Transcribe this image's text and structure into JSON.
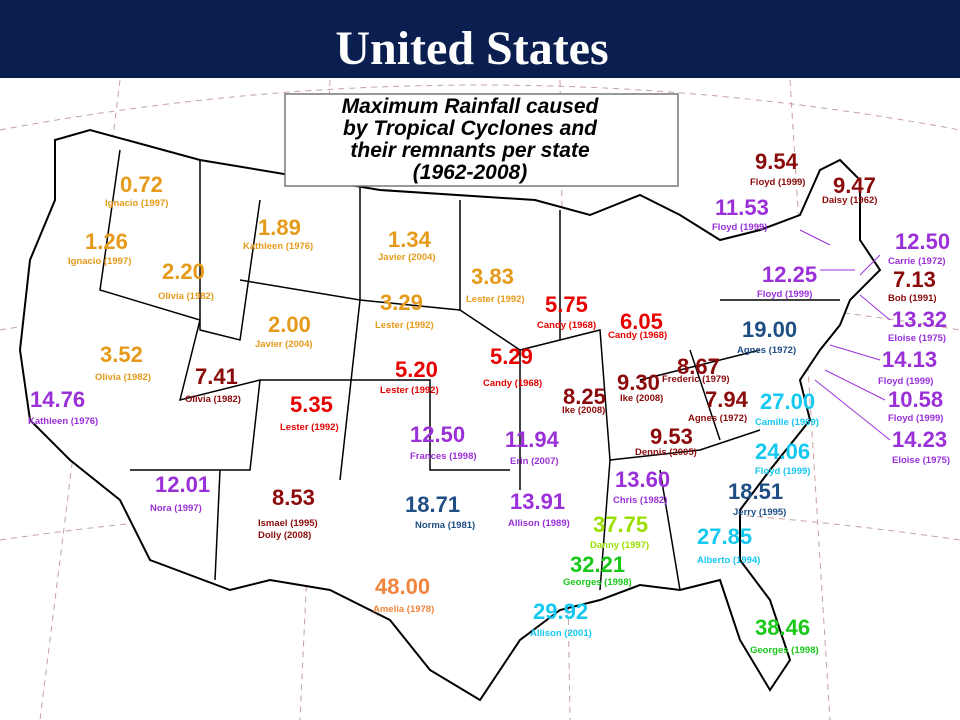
{
  "header": {
    "title": "United States"
  },
  "title_box": {
    "lines": [
      "Maximum Rainfall caused",
      "by Tropical Cyclones and",
      "their remnants per state",
      "(1962-2008)"
    ]
  },
  "labels": [
    {
      "value": "0.72",
      "storms": [
        "Ignacio (1997)"
      ],
      "color": "#e69a1a"
    },
    {
      "value": "1.26",
      "storms": [
        "Ignacio (1997)"
      ],
      "color": "#e69a1a"
    },
    {
      "value": "2.20",
      "storms": [
        "Olivia (1982)"
      ],
      "color": "#e69a1a"
    },
    {
      "value": "1.89",
      "storms": [
        "Kathleen (1976)"
      ],
      "color": "#e69a1a"
    },
    {
      "value": "1.34",
      "storms": [
        "Javier (2004)"
      ],
      "color": "#e69a1a"
    },
    {
      "value": "3.83",
      "storms": [
        "Lester (1992)"
      ],
      "color": "#e69a1a"
    },
    {
      "value": "3.29",
      "storms": [
        "Lester (1992)"
      ],
      "color": "#e69a1a"
    },
    {
      "value": "2.00",
      "storms": [
        "Javier (2004)"
      ],
      "color": "#e69a1a"
    },
    {
      "value": "3.52",
      "storms": [
        "Olivia (1982)"
      ],
      "color": "#e69a1a"
    },
    {
      "value": "7.41",
      "storms": [
        "Olivia (1982)"
      ],
      "color": "#8b0a0a"
    },
    {
      "value": "14.76",
      "storms": [
        "Kathleen (1976)"
      ],
      "color": "#9b30d9"
    },
    {
      "value": "5.35",
      "storms": [
        "Lester (1992)"
      ],
      "color": "#e60000"
    },
    {
      "value": "5.20",
      "storms": [
        "Lester (1992)"
      ],
      "color": "#e60000"
    },
    {
      "value": "5.29",
      "storms": [
        "Candy (1968)"
      ],
      "color": "#e60000"
    },
    {
      "value": "5.75",
      "storms": [
        "Candy (1968)"
      ],
      "color": "#e60000"
    },
    {
      "value": "6.05",
      "storms": [
        "Candy (1968)"
      ],
      "color": "#e60000"
    },
    {
      "value": "8.25",
      "storms": [
        "Ike (2008)"
      ],
      "color": "#8b0a0a"
    },
    {
      "value": "9.30",
      "storms": [
        "Ike (2008)"
      ],
      "color": "#8b0a0a"
    },
    {
      "value": "8.67",
      "storms": [
        "Frederic (1979)"
      ],
      "color": "#8b0a0a"
    },
    {
      "value": "7.94",
      "storms": [
        "Agnes (1972)"
      ],
      "color": "#8b0a0a"
    },
    {
      "value": "9.53",
      "storms": [
        "Dennis (2005)"
      ],
      "color": "#8b0a0a"
    },
    {
      "value": "12.50",
      "storms": [
        "Frances (1998)"
      ],
      "color": "#9b30d9"
    },
    {
      "value": "11.94",
      "storms": [
        "Erin (2007)"
      ],
      "color": "#9b30d9"
    },
    {
      "value": "12.01",
      "storms": [
        "Nora (1997)"
      ],
      "color": "#9b30d9"
    },
    {
      "value": "8.53",
      "storms": [
        "Ismael (1995)",
        "Dolly (2008)"
      ],
      "color": "#8b0a0a"
    },
    {
      "value": "18.71",
      "storms": [
        "Norma (1981)"
      ],
      "color": "#1f4e85"
    },
    {
      "value": "13.91",
      "storms": [
        "Allison (1989)"
      ],
      "color": "#9b30d9"
    },
    {
      "value": "13.60",
      "storms": [
        "Chris (1982)"
      ],
      "color": "#9b30d9"
    },
    {
      "value": "37.75",
      "storms": [
        "Danny (1997)"
      ],
      "color": "#99e000"
    },
    {
      "value": "32.21",
      "storms": [
        "Georges (1998)"
      ],
      "color": "#19c819"
    },
    {
      "value": "29.92",
      "storms": [
        "Allison (2001)"
      ],
      "color": "#14c8f0"
    },
    {
      "value": "48.00",
      "storms": [
        "Amelia (1978)"
      ],
      "color": "#f0843c"
    },
    {
      "value": "27.85",
      "storms": [
        "Alberto (1994)"
      ],
      "color": "#14c8f0"
    },
    {
      "value": "38.46",
      "storms": [
        "Georges (1998)"
      ],
      "color": "#19c819"
    },
    {
      "value": "18.51",
      "storms": [
        "Jerry (1995)"
      ],
      "color": "#1f4e85"
    },
    {
      "value": "24.06",
      "storms": [
        "Floyd (1999)"
      ],
      "color": "#14c8f0"
    },
    {
      "value": "27.00",
      "storms": [
        "Camille (1969)"
      ],
      "color": "#14c8f0"
    },
    {
      "value": "19.00",
      "storms": [
        "Agnes (1972)"
      ],
      "color": "#1f4e85"
    },
    {
      "value": "12.25",
      "storms": [
        "Floyd (1999)"
      ],
      "color": "#9b30d9"
    },
    {
      "value": "11.53",
      "storms": [
        "Floyd (1999)"
      ],
      "color": "#9b30d9"
    },
    {
      "value": "9.54",
      "storms": [
        "Floyd (1999)"
      ],
      "color": "#8b0a0a"
    },
    {
      "value": "9.47",
      "storms": [
        "Daisy (1962)"
      ],
      "color": "#8b0a0a"
    },
    {
      "value": "12.50",
      "storms": [
        "Carrie (1972)"
      ],
      "color": "#9b30d9"
    },
    {
      "value": "7.13",
      "storms": [
        "Bob (1991)"
      ],
      "color": "#8b0a0a"
    },
    {
      "value": "13.32",
      "storms": [
        "Eloise (1975)"
      ],
      "color": "#9b30d9"
    },
    {
      "value": "14.13",
      "storms": [
        "Floyd (1999)"
      ],
      "color": "#9b30d9"
    },
    {
      "value": "10.58",
      "storms": [
        "Floyd (1999)"
      ],
      "color": "#9b30d9"
    },
    {
      "value": "14.23",
      "storms": [
        "Eloise (1975)"
      ],
      "color": "#9b30d9"
    }
  ]
}
